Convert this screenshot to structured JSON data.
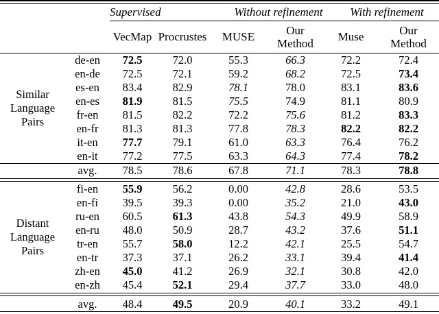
{
  "table": {
    "group_header": {
      "supervised": "Supervised",
      "without_refinement": "Without refinement",
      "with_refinement": "With refinement"
    },
    "columns": [
      "VecMap",
      "Procrustes",
      "MUSE",
      "Our\nMethod",
      "Muse",
      "Our\nMethod"
    ],
    "sections": [
      {
        "group_label": "Similar\nLanguage\nPairs",
        "rows": [
          {
            "pair": "de-en",
            "cells": [
              {
                "v": "72.5",
                "f": "b"
              },
              {
                "v": "72.0",
                "f": ""
              },
              {
                "v": "55.3",
                "f": ""
              },
              {
                "v": "66.3",
                "f": "i"
              },
              {
                "v": "72.2",
                "f": ""
              },
              {
                "v": "72.4",
                "f": ""
              }
            ]
          },
          {
            "pair": "en-de",
            "cells": [
              {
                "v": "72.5",
                "f": ""
              },
              {
                "v": "72.1",
                "f": ""
              },
              {
                "v": "59.2",
                "f": ""
              },
              {
                "v": "68.2",
                "f": "i"
              },
              {
                "v": "72.5",
                "f": ""
              },
              {
                "v": "73.4",
                "f": "b"
              }
            ]
          },
          {
            "pair": "es-en",
            "cells": [
              {
                "v": "83.4",
                "f": ""
              },
              {
                "v": "82.9",
                "f": ""
              },
              {
                "v": "78.1",
                "f": "i"
              },
              {
                "v": "78.0",
                "f": ""
              },
              {
                "v": "83.1",
                "f": ""
              },
              {
                "v": "83.6",
                "f": "b"
              }
            ]
          },
          {
            "pair": "en-es",
            "cells": [
              {
                "v": "81.9",
                "f": "b"
              },
              {
                "v": "81.5",
                "f": ""
              },
              {
                "v": "75.5",
                "f": "i"
              },
              {
                "v": "74.9",
                "f": ""
              },
              {
                "v": "81.1",
                "f": ""
              },
              {
                "v": "80.9",
                "f": ""
              }
            ]
          },
          {
            "pair": "fr-en",
            "cells": [
              {
                "v": "81.5",
                "f": ""
              },
              {
                "v": "82.2",
                "f": ""
              },
              {
                "v": "72.2",
                "f": ""
              },
              {
                "v": "75.6",
                "f": "i"
              },
              {
                "v": "81.2",
                "f": ""
              },
              {
                "v": "83.3",
                "f": "b"
              }
            ]
          },
          {
            "pair": "en-fr",
            "cells": [
              {
                "v": "81.3",
                "f": ""
              },
              {
                "v": "81.3",
                "f": ""
              },
              {
                "v": "77.8",
                "f": ""
              },
              {
                "v": "78.3",
                "f": "i"
              },
              {
                "v": "82.2",
                "f": "b"
              },
              {
                "v": "82.2",
                "f": "b"
              }
            ]
          },
          {
            "pair": "it-en",
            "cells": [
              {
                "v": "77.7",
                "f": "b"
              },
              {
                "v": "79.1",
                "f": ""
              },
              {
                "v": "61.0",
                "f": ""
              },
              {
                "v": "63.3",
                "f": "i"
              },
              {
                "v": "76.4",
                "f": ""
              },
              {
                "v": "76.2",
                "f": ""
              }
            ]
          },
          {
            "pair": "en-it",
            "cells": [
              {
                "v": "77.2",
                "f": ""
              },
              {
                "v": "77.5",
                "f": ""
              },
              {
                "v": "63.3",
                "f": ""
              },
              {
                "v": "64.3",
                "f": "i"
              },
              {
                "v": "77.4",
                "f": ""
              },
              {
                "v": "78.2",
                "f": "b"
              }
            ]
          }
        ],
        "avg": {
          "label": "avg.",
          "cells": [
            {
              "v": "78.5",
              "f": ""
            },
            {
              "v": "78.6",
              "f": ""
            },
            {
              "v": "67.8",
              "f": ""
            },
            {
              "v": "71.1",
              "f": "i"
            },
            {
              "v": "78.3",
              "f": ""
            },
            {
              "v": "78.8",
              "f": "b"
            }
          ]
        }
      },
      {
        "group_label": "Distant\nLanguage\nPairs",
        "rows": [
          {
            "pair": "fi-en",
            "cells": [
              {
                "v": "55.9",
                "f": "b"
              },
              {
                "v": "56.2",
                "f": ""
              },
              {
                "v": "0.00",
                "f": ""
              },
              {
                "v": "42.8",
                "f": "i"
              },
              {
                "v": "28.6",
                "f": ""
              },
              {
                "v": "53.5",
                "f": ""
              }
            ]
          },
          {
            "pair": "en-fi",
            "cells": [
              {
                "v": "39.5",
                "f": ""
              },
              {
                "v": "39.3",
                "f": ""
              },
              {
                "v": "0.00",
                "f": ""
              },
              {
                "v": "35.2",
                "f": "i"
              },
              {
                "v": "21.0",
                "f": ""
              },
              {
                "v": "43.0",
                "f": "b"
              }
            ]
          },
          {
            "pair": "ru-en",
            "cells": [
              {
                "v": "60.5",
                "f": ""
              },
              {
                "v": "61.3",
                "f": "b"
              },
              {
                "v": "43.8",
                "f": ""
              },
              {
                "v": "54.3",
                "f": "i"
              },
              {
                "v": "49.9",
                "f": ""
              },
              {
                "v": "58.9",
                "f": ""
              }
            ]
          },
          {
            "pair": "en-ru",
            "cells": [
              {
                "v": "48.0",
                "f": ""
              },
              {
                "v": "50.9",
                "f": ""
              },
              {
                "v": "28.7",
                "f": ""
              },
              {
                "v": "43.2",
                "f": "i"
              },
              {
                "v": "37.6",
                "f": ""
              },
              {
                "v": "51.1",
                "f": "b"
              }
            ]
          },
          {
            "pair": "tr-en",
            "cells": [
              {
                "v": "55.7",
                "f": ""
              },
              {
                "v": "58.0",
                "f": "b"
              },
              {
                "v": "12.2",
                "f": ""
              },
              {
                "v": "42.1",
                "f": "i"
              },
              {
                "v": "25.5",
                "f": ""
              },
              {
                "v": "54.7",
                "f": ""
              }
            ]
          },
          {
            "pair": "en-tr",
            "cells": [
              {
                "v": "37.3",
                "f": ""
              },
              {
                "v": "37.1",
                "f": ""
              },
              {
                "v": "26.2",
                "f": ""
              },
              {
                "v": "33.1",
                "f": "i"
              },
              {
                "v": "39.4",
                "f": ""
              },
              {
                "v": "41.4",
                "f": "b"
              }
            ]
          },
          {
            "pair": "zh-en",
            "cells": [
              {
                "v": "45.0",
                "f": "b"
              },
              {
                "v": "41.2",
                "f": ""
              },
              {
                "v": "26.9",
                "f": ""
              },
              {
                "v": "32.1",
                "f": "i"
              },
              {
                "v": "30.8",
                "f": ""
              },
              {
                "v": "42.0",
                "f": ""
              }
            ]
          },
          {
            "pair": "en-zh",
            "cells": [
              {
                "v": "45.4",
                "f": ""
              },
              {
                "v": "52.1",
                "f": "b"
              },
              {
                "v": "29.4",
                "f": ""
              },
              {
                "v": "37.7",
                "f": "i"
              },
              {
                "v": "33.0",
                "f": ""
              },
              {
                "v": "48.0",
                "f": ""
              }
            ]
          }
        ],
        "avg": {
          "label": "avg.",
          "cells": [
            {
              "v": "48.4",
              "f": ""
            },
            {
              "v": "49.5",
              "f": "b"
            },
            {
              "v": "20.9",
              "f": ""
            },
            {
              "v": "40.1",
              "f": "i"
            },
            {
              "v": "33.2",
              "f": ""
            },
            {
              "v": "49.1",
              "f": ""
            }
          ]
        }
      }
    ]
  }
}
